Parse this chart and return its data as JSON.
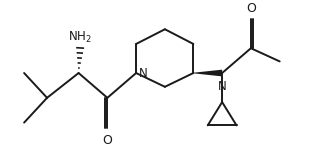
{
  "bg_color": "#ffffff",
  "line_color": "#1a1a1a",
  "line_width": 1.4,
  "font_size": 8.5,
  "figsize": [
    3.2,
    1.64
  ],
  "dpi": 100,
  "xlim": [
    0,
    10
  ],
  "ylim": [
    0,
    5.13
  ]
}
